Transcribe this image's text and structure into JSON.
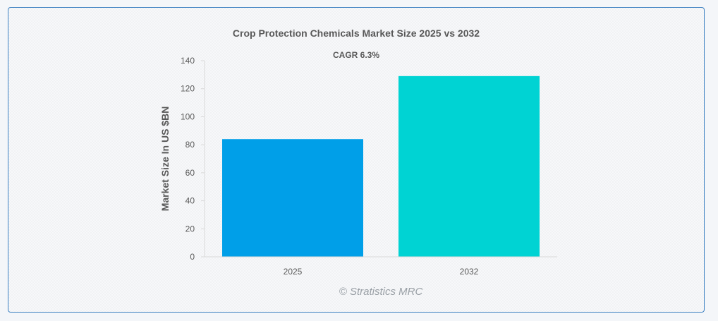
{
  "chart_data": {
    "type": "bar",
    "title": "Crop Protection Chemicals Market Size 2025 vs 2032",
    "subtitle": "CAGR 6.3%",
    "xlabel": "",
    "ylabel": "Market Size In US $BN",
    "categories": [
      "2025",
      "2032"
    ],
    "values": [
      84,
      129
    ],
    "ylim": [
      0,
      140
    ],
    "yticks": [
      0,
      20,
      40,
      60,
      80,
      100,
      120,
      140
    ],
    "bar_colors": [
      "#009fe8",
      "#00d3d3"
    ],
    "grid": false,
    "legend": "none"
  },
  "watermark": "© Stratistics MRC"
}
